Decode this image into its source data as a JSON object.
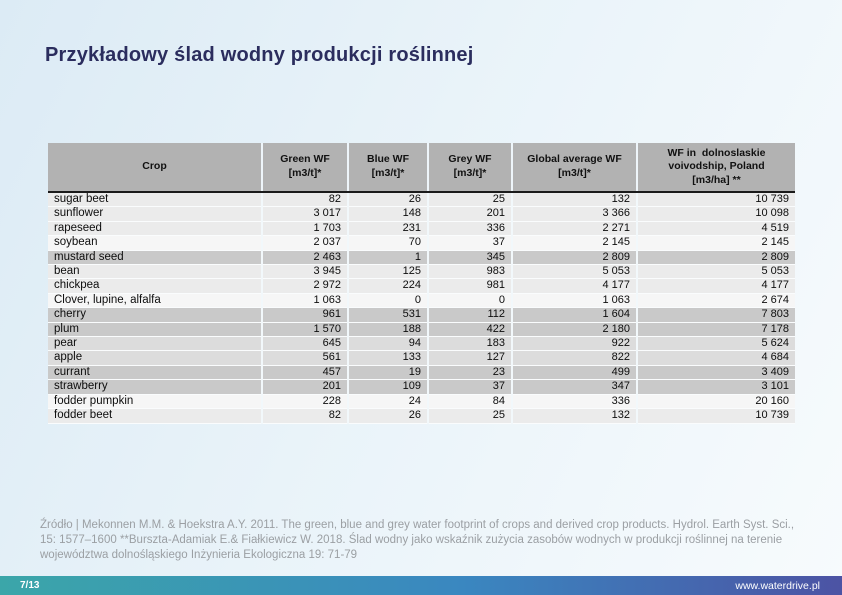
{
  "title": "Przykładowy ślad wodny produkcji roślinnej",
  "table": {
    "headers": [
      {
        "lines": [
          "Crop"
        ]
      },
      {
        "lines": [
          "Green WF",
          "[m3/t]*"
        ]
      },
      {
        "lines": [
          "Blue WF",
          "[m3/t]*"
        ]
      },
      {
        "lines": [
          "Grey WF",
          "[m3/t]*"
        ]
      },
      {
        "lines": [
          "Global average WF",
          "[m3/t]*"
        ]
      },
      {
        "lines": [
          "WF in  dolnoslaskie",
          "voivodship, Poland",
          "[m3/ha] **"
        ]
      }
    ],
    "rows": [
      {
        "crop": "sugar beet",
        "values": [
          "82",
          "26",
          "25",
          "132",
          "10 739"
        ],
        "shade": "light"
      },
      {
        "crop": "sunflower",
        "values": [
          "3 017",
          "148",
          "201",
          "3 366",
          "10 098"
        ],
        "shade": "light"
      },
      {
        "crop": "rapeseed",
        "values": [
          "1 703",
          "231",
          "336",
          "2 271",
          "4 519"
        ],
        "shade": "light"
      },
      {
        "crop": "soybean",
        "values": [
          "2 037",
          "70",
          "37",
          "2 145",
          "2 145"
        ],
        "shade": "white"
      },
      {
        "crop": "mustard seed",
        "values": [
          "2 463",
          "1",
          "345",
          "2 809",
          "2 809"
        ],
        "shade": "dark"
      },
      {
        "crop": "bean",
        "values": [
          "3 945",
          "125",
          "983",
          "5 053",
          "5 053"
        ],
        "shade": "light"
      },
      {
        "crop": "chickpea",
        "values": [
          "2 972",
          "224",
          "981",
          "4 177",
          "4 177"
        ],
        "shade": "light"
      },
      {
        "crop": "Clover, lupine, alfalfa",
        "values": [
          "1 063",
          "0",
          "0",
          "1 063",
          "2 674"
        ],
        "shade": "white"
      },
      {
        "crop": "cherry",
        "values": [
          "961",
          "531",
          "112",
          "1 604",
          "7 803"
        ],
        "shade": "dark"
      },
      {
        "crop": "plum",
        "values": [
          "1 570",
          "188",
          "422",
          "2 180",
          "7 178"
        ],
        "shade": "dark"
      },
      {
        "crop": "pear",
        "values": [
          "645",
          "94",
          "183",
          "922",
          "5 624"
        ],
        "shade": "medium"
      },
      {
        "crop": "apple",
        "values": [
          "561",
          "133",
          "127",
          "822",
          "4 684"
        ],
        "shade": "medium"
      },
      {
        "crop": "currant",
        "values": [
          "457",
          "19",
          "23",
          "499",
          "3 409"
        ],
        "shade": "dark"
      },
      {
        "crop": "strawberry",
        "values": [
          "201",
          "109",
          "37",
          "347",
          "3 101"
        ],
        "shade": "dark"
      },
      {
        "crop": "fodder pumpkin",
        "values": [
          "228",
          "24",
          "84",
          "336",
          "20 160"
        ],
        "shade": "white"
      },
      {
        "crop": "fodder beet",
        "values": [
          "82",
          "26",
          "25",
          "132",
          "10 739"
        ],
        "shade": "light"
      }
    ]
  },
  "source_note": "Źródło | Mekonnen M.M. & Hoekstra A.Y. 2011. The green, blue and grey water footprint of crops and derived crop products. Hydrol. Earth Syst. Sci., 15: 1577–1600 **Burszta-Adamiak E.& Fiałkiewicz W. 2018. Ślad wodny jako wskaźnik zużycia zasobów wodnych w produkcji roślinnej na terenie województwa dolnośląskiego  Inżynieria Ekologiczna 19: 71-79",
  "footer": {
    "page": "7/13",
    "url": "www.waterdrive.pl"
  },
  "colors": {
    "title_text": "#2b2d5e",
    "header_bg": "#b2b2b2",
    "row_light": "#ebebeb",
    "row_white": "#f6f6f6",
    "row_medium": "#dcdcdc",
    "row_dark": "#c9c9c9",
    "bar_gradient_left": "#3ba6a9",
    "bar_gradient_mid": "#3a87c0",
    "bar_gradient_right": "#4c53a4",
    "source_text": "#9b9fa3"
  }
}
